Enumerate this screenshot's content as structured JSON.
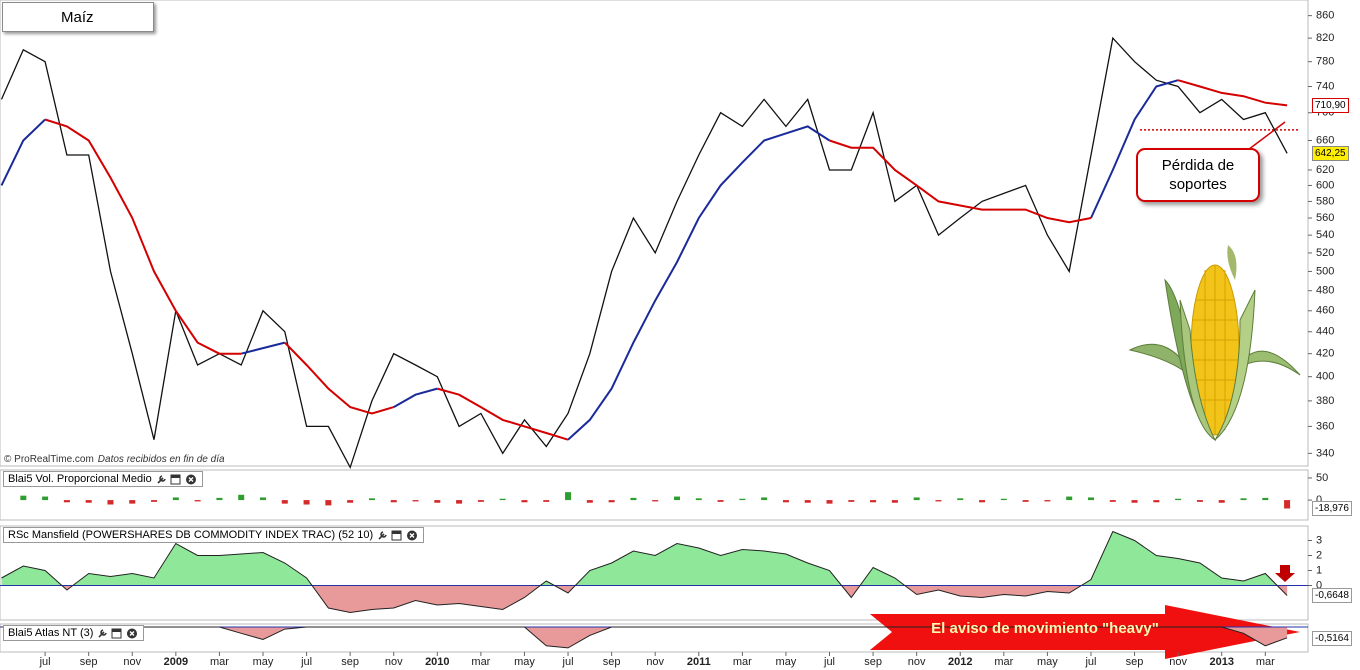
{
  "chart_data": [
    {
      "type": "line",
      "title": "Maíz",
      "source": "© ProRealTime.com",
      "source_note": "Datos recibidos en fin de día",
      "log_scale": true,
      "x": [
        -2,
        -1,
        0,
        1,
        2,
        3,
        4,
        5,
        6,
        7,
        8,
        9,
        10,
        11,
        12,
        13,
        14,
        15,
        16,
        17,
        18,
        19,
        20,
        21,
        22,
        23,
        24,
        25,
        26,
        27,
        28,
        29,
        30,
        31,
        32,
        33,
        34,
        35,
        36,
        37,
        38,
        39,
        40,
        41,
        42,
        43,
        44,
        45,
        46,
        47,
        48,
        49,
        50,
        51,
        52,
        53,
        54,
        55,
        56,
        57
      ],
      "xlim": [
        -2.07,
        57.96
      ],
      "xticks": [
        {
          "value": 0,
          "label": "jul"
        },
        {
          "value": 2,
          "label": "sep"
        },
        {
          "value": 4,
          "label": "nov"
        },
        {
          "value": 6,
          "label": "2009"
        },
        {
          "value": 8,
          "label": "mar"
        },
        {
          "value": 10,
          "label": "may"
        },
        {
          "value": 12,
          "label": "jul"
        },
        {
          "value": 14,
          "label": "sep"
        },
        {
          "value": 16,
          "label": "nov"
        },
        {
          "value": 18,
          "label": "2010"
        },
        {
          "value": 20,
          "label": "mar"
        },
        {
          "value": 22,
          "label": "may"
        },
        {
          "value": 24,
          "label": "jul"
        },
        {
          "value": 26,
          "label": "sep"
        },
        {
          "value": 28,
          "label": "nov"
        },
        {
          "value": 30,
          "label": "2011"
        },
        {
          "value": 32,
          "label": "mar"
        },
        {
          "value": 34,
          "label": "may"
        },
        {
          "value": 36,
          "label": "jul"
        },
        {
          "value": 38,
          "label": "sep"
        },
        {
          "value": 40,
          "label": "nov"
        },
        {
          "value": 42,
          "label": "2012"
        },
        {
          "value": 44,
          "label": "mar"
        },
        {
          "value": 46,
          "label": "may"
        },
        {
          "value": 48,
          "label": "jul"
        },
        {
          "value": 50,
          "label": "sep"
        },
        {
          "value": 52,
          "label": "nov"
        },
        {
          "value": 54,
          "label": "2013"
        },
        {
          "value": 56,
          "label": "mar"
        }
      ],
      "ylim": [
        331,
        889
      ],
      "yticks": [
        860,
        820,
        780,
        740,
        700,
        660,
        620,
        600,
        580,
        560,
        540,
        520,
        500,
        480,
        460,
        440,
        420,
        400,
        380,
        360,
        340
      ],
      "series": [
        {
          "color": "#111111",
          "values": [
            720,
            800,
            780,
            640,
            640,
            500,
            420,
            350,
            460,
            410,
            420,
            410,
            460,
            440,
            360,
            360,
            330,
            380,
            420,
            410,
            400,
            360,
            370,
            340,
            365,
            345,
            370,
            420,
            500,
            560,
            520,
            580,
            640,
            700,
            680,
            720,
            680,
            720,
            620,
            620,
            700,
            580,
            600,
            540,
            560,
            580,
            590,
            600,
            540,
            500,
            640,
            820,
            780,
            750,
            740,
            700,
            720,
            690,
            700,
            642.25
          ],
          "last_label": "642,25",
          "label_color": "#ffee00"
        },
        {
          "color": "#1a2a9a",
          "values": [
            600,
            660,
            690,
            null,
            null,
            null,
            null,
            null,
            null,
            null,
            null,
            420,
            425,
            430,
            null,
            null,
            null,
            null,
            375,
            385,
            390,
            null,
            null,
            null,
            null,
            null,
            350,
            365,
            390,
            430,
            470,
            510,
            560,
            600,
            630,
            660,
            670,
            680,
            660,
            null,
            null,
            null,
            null,
            null,
            null,
            null,
            null,
            null,
            null,
            null,
            560,
            620,
            690,
            740,
            750,
            null,
            null,
            null,
            null,
            null
          ]
        },
        {
          "color": "#d40000",
          "values": [
            null,
            null,
            690,
            680,
            660,
            610,
            560,
            500,
            460,
            430,
            420,
            420,
            null,
            430,
            410,
            390,
            375,
            370,
            375,
            null,
            390,
            385,
            375,
            365,
            360,
            355,
            350,
            null,
            null,
            null,
            null,
            null,
            null,
            null,
            null,
            null,
            null,
            null,
            660,
            650,
            650,
            620,
            600,
            580,
            575,
            570,
            570,
            570,
            560,
            555,
            560,
            null,
            null,
            null,
            750,
            740,
            730,
            725,
            715,
            710.9
          ],
          "last_label": "710,90",
          "label_color": "#ffffff"
        }
      ],
      "support": {
        "value": 675,
        "color": "#d40000"
      },
      "annotation": "Pérdida de soportes"
    },
    {
      "type": "bar",
      "title": "Blai5 Vol. Proporcional Medio",
      "values": [
        0,
        10,
        8,
        -5,
        -6,
        -10,
        -8,
        -4,
        6,
        -3,
        5,
        12,
        6,
        -8,
        -10,
        -12,
        -6,
        4,
        -5,
        -3,
        -6,
        -8,
        -4,
        3,
        -5,
        -4,
        18,
        -6,
        -5,
        5,
        -3,
        8,
        4,
        -4,
        3,
        6,
        -5,
        -6,
        -8,
        -4,
        -5,
        -6,
        6,
        -3,
        4,
        -5,
        3,
        -4,
        -3,
        8,
        6,
        -4,
        -6,
        -5,
        3,
        -4,
        -6,
        4,
        5,
        -18.976
      ],
      "last_label": "-18,976",
      "ylim": [
        -45,
        68
      ],
      "yticks": [
        50,
        0
      ],
      "up_color": "#2e9e2e",
      "down_color": "#d42a2a"
    },
    {
      "type": "area",
      "title": "RSc Mansfield (POWERSHARES DB COMMODITY INDEX TRAC) (52 10)",
      "values": [
        0.5,
        1.3,
        1.0,
        -0.3,
        0.8,
        0.6,
        0.8,
        0.5,
        2.8,
        2.0,
        2.0,
        2.1,
        2.2,
        1.5,
        0.5,
        -1.5,
        -1.8,
        -1.6,
        -1.5,
        -1.0,
        -1.3,
        -1.2,
        -1.4,
        -1.6,
        -0.8,
        0.3,
        -0.5,
        1.0,
        1.5,
        2.3,
        2.0,
        2.8,
        2.5,
        2.0,
        2.4,
        2.3,
        2.1,
        1.5,
        1.0,
        -0.8,
        1.2,
        0.5,
        -0.6,
        -0.3,
        -0.7,
        -0.8,
        -0.6,
        -0.7,
        -0.4,
        -0.5,
        0.4,
        3.6,
        3.0,
        2.0,
        1.8,
        1.5,
        0.5,
        0.3,
        0.8,
        -0.6648
      ],
      "last_label": "-0,6648",
      "ylim": [
        -2.3,
        3.9
      ],
      "yticks": [
        3,
        2,
        1,
        0
      ],
      "up_color": "#8fe89a",
      "down_color": "#e89a9a"
    },
    {
      "type": "area",
      "title": "Blai5 Atlas NT (3)",
      "values": [
        0,
        0,
        0,
        0,
        0,
        0,
        0,
        0,
        0,
        0,
        0,
        -0.3,
        -0.6,
        -0.1,
        0,
        0,
        0,
        0,
        0,
        0,
        0,
        0,
        0,
        0,
        0,
        -0.9,
        -1,
        -0.4,
        0,
        0,
        0,
        0,
        0,
        0,
        0,
        0,
        0,
        0,
        0,
        0,
        0,
        0,
        0,
        0,
        0,
        0,
        0,
        0,
        0,
        0,
        0,
        0,
        0,
        0,
        0,
        0,
        0,
        -0.3,
        -0.9,
        -0.5164
      ],
      "last_label": "-0,5164",
      "ylim": [
        -1.1,
        0
      ],
      "yticks": [],
      "up_color": "#8fe89a",
      "down_color": "#e89a9a",
      "annotation": "El aviso de movimiento \"heavy\""
    }
  ]
}
